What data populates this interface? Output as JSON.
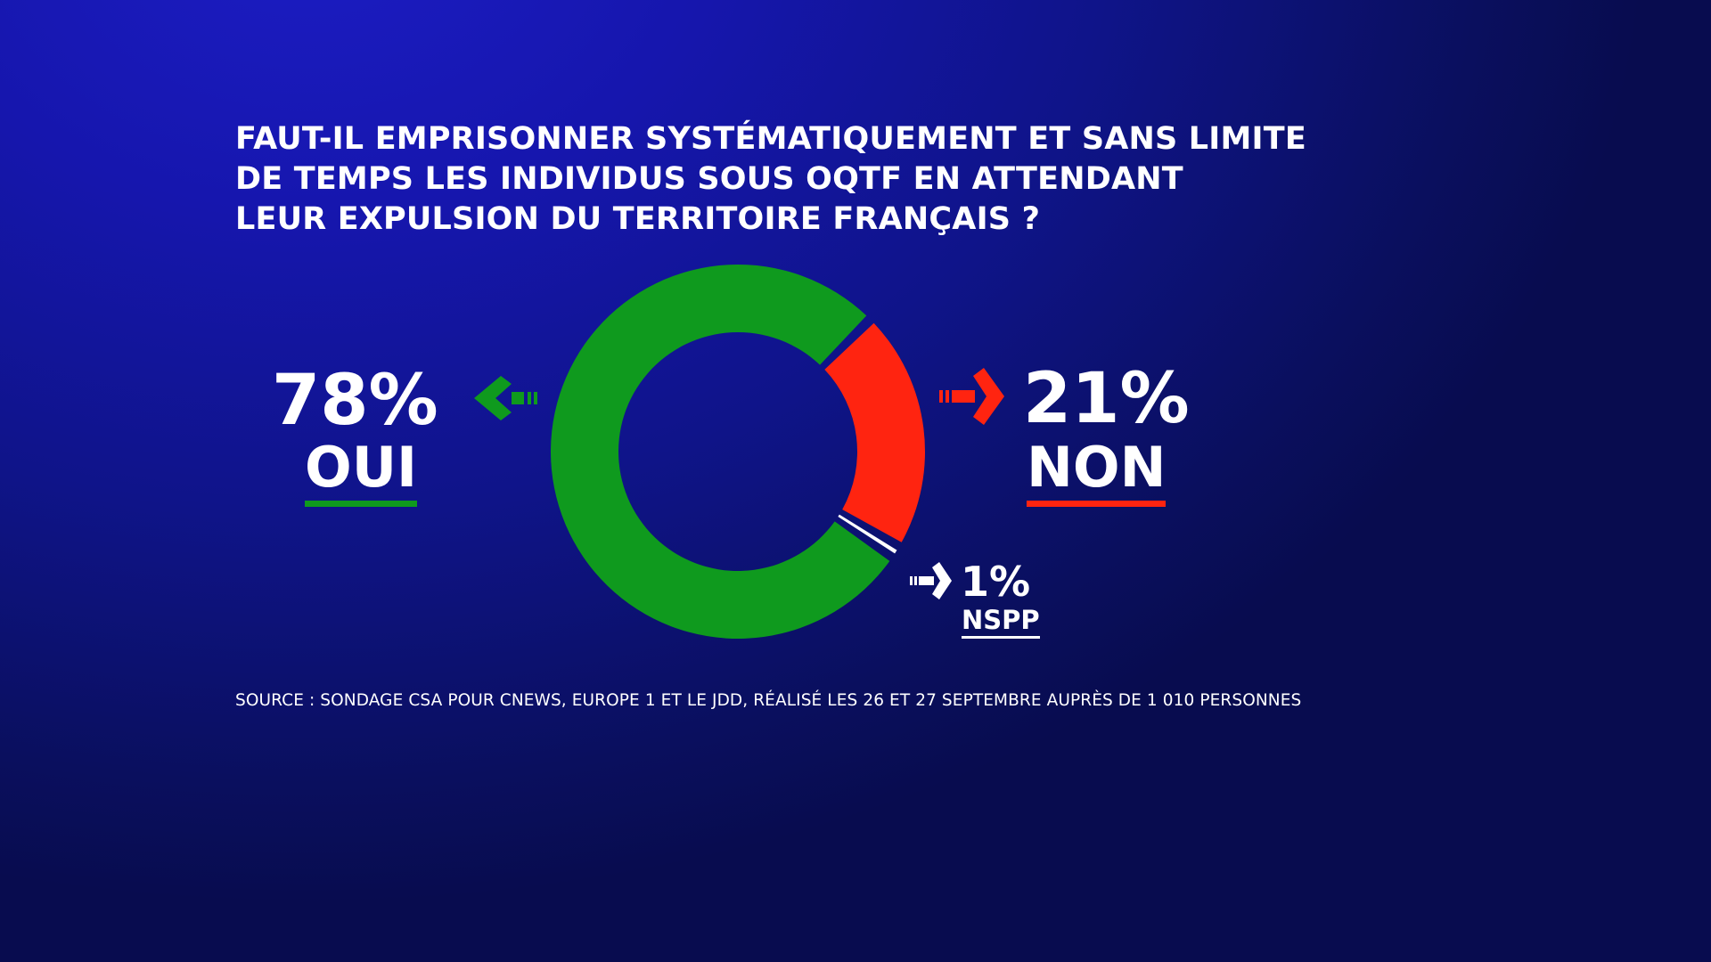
{
  "title": [
    "FAUT-IL EMPRISONNER SYSTÉMATIQUEMENT ET SANS LIMITE",
    "DE TEMPS LES INDIVIDUS SOUS OQTF EN ATTENDANT",
    "LEUR EXPULSION DU TERRITOIRE FRANÇAIS ?"
  ],
  "chart_data": {
    "type": "pie",
    "style": "donut",
    "categories": [
      "OUI",
      "NON",
      "NSPP"
    ],
    "values": [
      78,
      21,
      1
    ],
    "value_labels": [
      "78%",
      "21%",
      "1%"
    ],
    "colors": [
      "#0f9a1e",
      "#ff2410",
      "#ffffff"
    ]
  },
  "source": "SOURCE : SONDAGE CSA POUR CNEWS, EUROPE 1 ET LE JDD, RÉALISÉ LES 26 ET 27 SEPTEMBRE AUPRÈS DE 1 010 PERSONNES",
  "colors": {
    "background": "#1414a0",
    "oui": "#0f9a1e",
    "non": "#ff2410",
    "nspp": "#ffffff"
  },
  "icons": {
    "oui": "arrow-left-icon",
    "non": "arrow-right-icon",
    "nspp": "arrow-right-icon"
  }
}
